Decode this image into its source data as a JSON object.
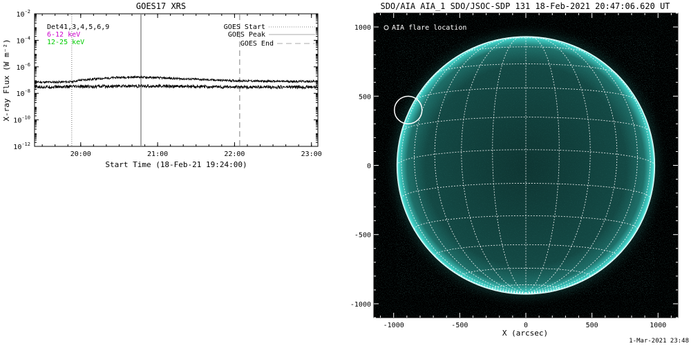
{
  "chart_data": [
    {
      "type": "line",
      "title": "GOES17 XRS",
      "xlabel": "Start Time (18-Feb-21 19:24:00)",
      "ylabel": "X-ray Flux (W m⁻²)",
      "y_scale": "log",
      "ylim": [
        "1e-12",
        "1e-2"
      ],
      "xlim": [
        "19:24",
        "23:05"
      ],
      "x_ticks": [
        "20:00",
        "21:00",
        "22:00",
        "23:00"
      ],
      "y_ticks": [
        {
          "value": -12,
          "base": "10",
          "exp": "-12"
        },
        {
          "value": -10,
          "base": "10",
          "exp": "-10"
        },
        {
          "value": -8,
          "base": "10",
          "exp": "-8"
        },
        {
          "value": -6,
          "base": "10",
          "exp": "-6"
        },
        {
          "value": -4,
          "base": "10",
          "exp": "-4"
        },
        {
          "value": -2,
          "base": "10",
          "exp": "-2"
        }
      ],
      "channel_labels": [
        {
          "text": "Det41,3,4,5,6,9",
          "color": "#000000"
        },
        {
          "text": "6-12 keV",
          "color": "#cc00cc"
        },
        {
          "text": "12-25 keV",
          "color": "#00cc00"
        }
      ],
      "legend": [
        {
          "label": "GOES Start",
          "style": "dotted",
          "color": "#888888"
        },
        {
          "label": "GOES Peak",
          "style": "solid",
          "color": "#aaaaaa"
        },
        {
          "label": "GOES End",
          "style": "dashed",
          "color": "#aaaaaa"
        }
      ],
      "legend_position": "top-right",
      "event_markers": [
        {
          "name": "GOES Start",
          "time": "19:53"
        },
        {
          "name": "GOES Peak",
          "time": "20:47"
        },
        {
          "name": "GOES End",
          "time": "22:04"
        }
      ],
      "series": [
        {
          "x": [
            "19:24",
            "19:40",
            "19:53",
            "20:00",
            "20:15",
            "20:30",
            "20:45",
            "21:00",
            "21:15",
            "21:30",
            "21:45",
            "22:00",
            "22:15",
            "22:30",
            "22:45",
            "23:05"
          ],
          "y": [
            "7.0e-8",
            "7.0e-8",
            "7.5e-8",
            "1.0e-7",
            "1.3e-7",
            "1.6e-7",
            "1.7e-7",
            "1.5e-7",
            "1.3e-7",
            "1.15e-7",
            "1.0e-7",
            "9.0e-8",
            "8.5e-8",
            "8.0e-8",
            "8.0e-8",
            "8.0e-8"
          ]
        },
        {
          "x": [
            "19:24",
            "20:00",
            "20:30",
            "21:00",
            "21:30",
            "22:00",
            "22:30",
            "23:05"
          ],
          "y": [
            "3.0e-8",
            "3.2e-8",
            "3.5e-8",
            "3.5e-8",
            "3.2e-8",
            "3.0e-8",
            "3.0e-8",
            "3.0e-8"
          ]
        }
      ]
    },
    {
      "type": "image",
      "title": "SDO/AIA AIA_1 SDO/JSOC-SDP 131 18-Feb-2021 20:47:06.620 UT",
      "xlabel": "X (arcsec)",
      "xlim": [
        -1150,
        1150
      ],
      "ylim": [
        -1100,
        1100
      ],
      "x_ticks": [
        "-1000",
        "-500",
        "0",
        "500",
        "1000"
      ],
      "y_ticks": [
        "1000",
        "500",
        "0",
        "-500",
        "-1000"
      ],
      "x_tick_values": [
        -1000,
        -500,
        0,
        500,
        1000
      ],
      "y_tick_values": [
        1000,
        500,
        0,
        -500,
        -1000
      ],
      "legend_label": "AIA flare location",
      "legend_position": "top-left",
      "flare_location": {
        "x": -890,
        "y": 400
      },
      "solar_radius_arcsec": 975,
      "grid": true,
      "colors": {
        "disk": "#0f3a38",
        "limb": "#35c8c0",
        "background": "#000000"
      }
    }
  ],
  "footer": {
    "timestamp": "1-Mar-2021 23:48"
  }
}
